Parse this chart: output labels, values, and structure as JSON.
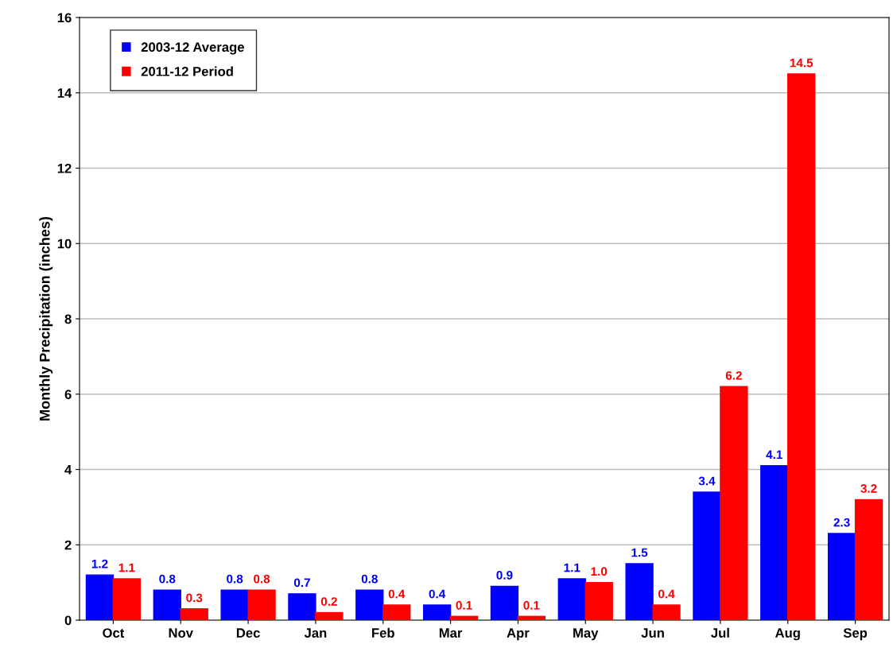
{
  "chart_data": {
    "type": "bar",
    "ylabel": "Monthly Precipitation (inches)",
    "categories": [
      "Oct",
      "Nov",
      "Dec",
      "Jan",
      "Feb",
      "Mar",
      "Apr",
      "May",
      "Jun",
      "Jul",
      "Aug",
      "Sep"
    ],
    "series": [
      {
        "name": "2003-12 Average",
        "color": "#0000ff",
        "values": [
          1.2,
          0.8,
          0.8,
          0.7,
          0.8,
          0.4,
          0.9,
          1.1,
          1.5,
          3.4,
          4.1,
          2.3
        ],
        "value_labels": [
          "1.2",
          "0.8",
          "0.8",
          "0.7",
          "0.8",
          "0.4",
          "0.9",
          "1.1",
          "1.5",
          "3.4",
          "4.1",
          "2.3"
        ]
      },
      {
        "name": "2011-12 Period",
        "color": "#ff0000",
        "values": [
          1.1,
          0.3,
          0.8,
          0.2,
          0.4,
          0.1,
          0.1,
          1.0,
          0.4,
          6.2,
          14.5,
          3.2
        ],
        "value_labels": [
          "1.1",
          "0.3",
          "0.8",
          "0.2",
          "0.4",
          "0.1",
          "0.1",
          "1.0",
          "0.4",
          "6.2",
          "14.5",
          "3.2"
        ]
      }
    ],
    "ylim": [
      0,
      16
    ],
    "yticks": [
      0,
      2,
      4,
      6,
      8,
      10,
      12,
      14,
      16
    ],
    "grid": "y",
    "legend": "top left"
  }
}
